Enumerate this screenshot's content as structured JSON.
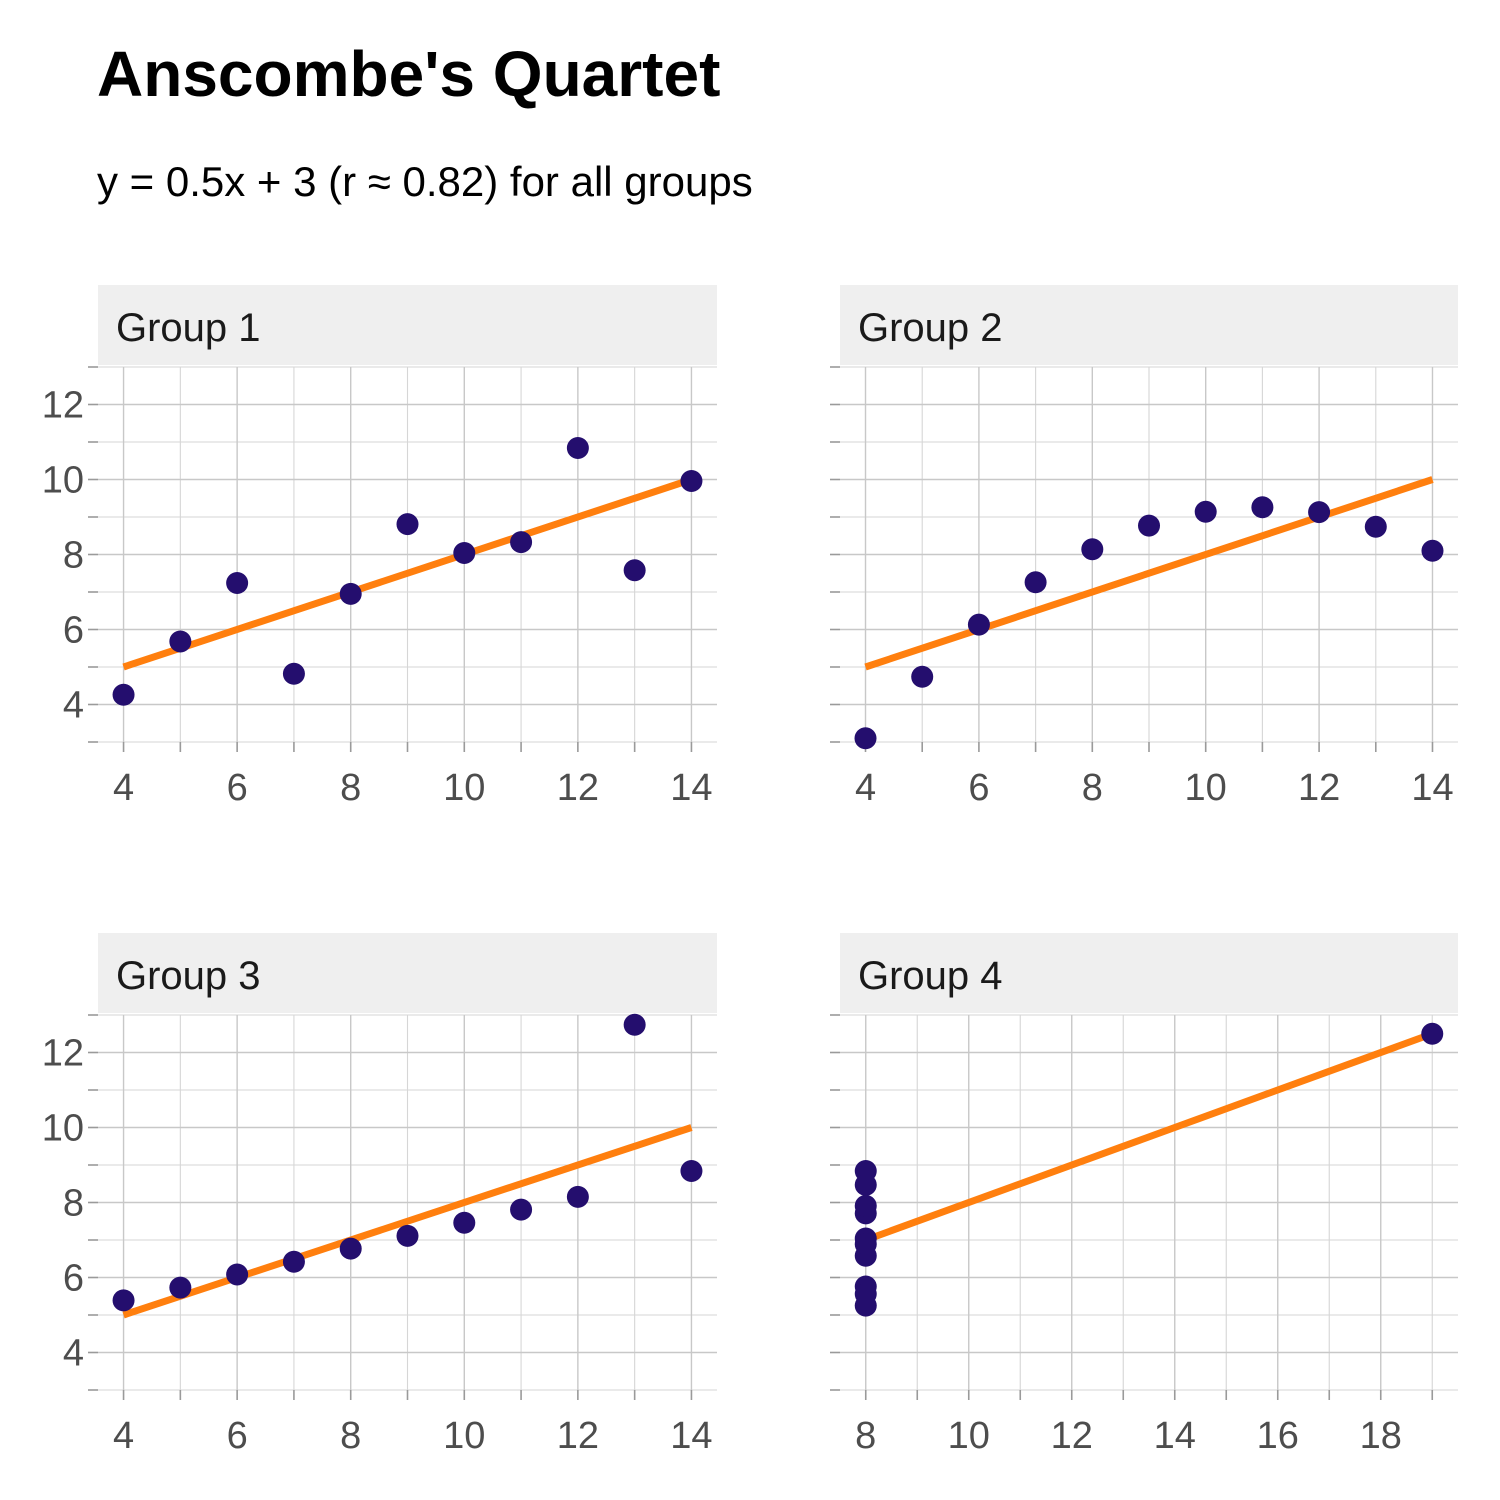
{
  "chart_data": {
    "type": "scatter",
    "title": "Anscombe's Quartet",
    "subtitle": "y = 0.5x + 3 (r ≈ 0.82) for all groups",
    "colors": {
      "points": "#240E6E",
      "fit_line": "#FF7F0E",
      "strip_background": "#EFEFEF",
      "grid": "#C8C8C8"
    },
    "grid": true,
    "fit_line": {
      "slope": 0.5,
      "intercept": 3
    },
    "y_ticks": [
      4,
      6,
      8,
      10,
      12
    ],
    "ylim": [
      3,
      13
    ],
    "panels": [
      {
        "label": "Group 1",
        "xlim": [
          3.55,
          14.45
        ],
        "x_ticks": [
          4,
          6,
          8,
          10,
          12,
          14
        ],
        "x_minor": [
          5,
          7,
          9,
          11,
          13
        ],
        "x": [
          10,
          8,
          13,
          9,
          11,
          14,
          6,
          4,
          12,
          7,
          5
        ],
        "y": [
          8.04,
          6.95,
          7.58,
          8.81,
          8.33,
          9.96,
          7.24,
          4.26,
          10.84,
          4.82,
          5.68
        ]
      },
      {
        "label": "Group 2",
        "xlim": [
          3.55,
          14.45
        ],
        "x_ticks": [
          4,
          6,
          8,
          10,
          12,
          14
        ],
        "x_minor": [
          5,
          7,
          9,
          11,
          13
        ],
        "x": [
          10,
          8,
          13,
          9,
          11,
          14,
          6,
          4,
          12,
          7,
          5
        ],
        "y": [
          9.14,
          8.14,
          8.74,
          8.77,
          9.26,
          8.1,
          6.13,
          3.1,
          9.13,
          7.26,
          4.74
        ]
      },
      {
        "label": "Group 3",
        "xlim": [
          3.55,
          14.45
        ],
        "x_ticks": [
          4,
          6,
          8,
          10,
          12,
          14
        ],
        "x_minor": [
          5,
          7,
          9,
          11,
          13
        ],
        "x": [
          10,
          8,
          13,
          9,
          11,
          14,
          6,
          4,
          12,
          7,
          5
        ],
        "y": [
          7.46,
          6.77,
          12.74,
          7.11,
          7.81,
          8.84,
          6.08,
          5.39,
          8.15,
          6.42,
          5.73
        ]
      },
      {
        "label": "Group 4",
        "xlim": [
          7.5,
          19.5
        ],
        "x_ticks": [
          8,
          10,
          12,
          14,
          16,
          18
        ],
        "x_minor": [
          9,
          11,
          13,
          15,
          17,
          19
        ],
        "x": [
          8,
          8,
          8,
          8,
          8,
          8,
          8,
          19,
          8,
          8,
          8
        ],
        "y": [
          6.58,
          5.76,
          7.71,
          8.84,
          8.47,
          7.04,
          5.25,
          12.5,
          5.56,
          7.91,
          6.89
        ]
      }
    ]
  }
}
